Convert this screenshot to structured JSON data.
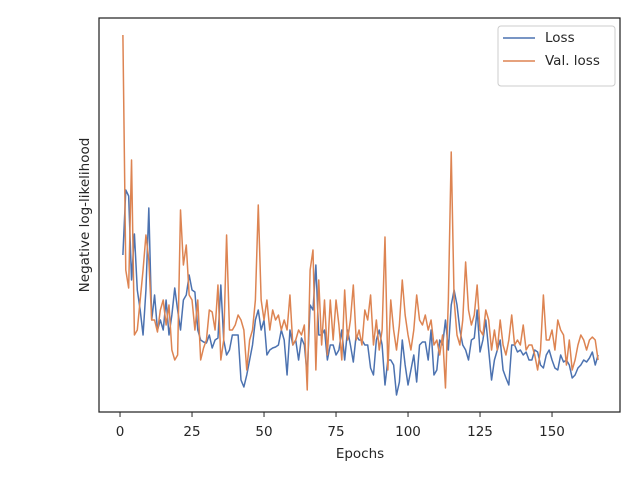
{
  "chart_data": {
    "type": "line",
    "xlabel": "Epochs",
    "ylabel": "Negative log-likelihood",
    "x": [
      1,
      2,
      3,
      4,
      5,
      6,
      7,
      8,
      9,
      10,
      11,
      12,
      13,
      14,
      15,
      16,
      17,
      18,
      19,
      20,
      21,
      22,
      23,
      24,
      25,
      26,
      27,
      28,
      29,
      30,
      31,
      32,
      33,
      34,
      35,
      36,
      37,
      38,
      39,
      40,
      41,
      42,
      43,
      44,
      45,
      46,
      47,
      48,
      49,
      50,
      51,
      52,
      53,
      54,
      55,
      56,
      57,
      58,
      59,
      60,
      61,
      62,
      63,
      64,
      65,
      66,
      67,
      68,
      69,
      70,
      71,
      72,
      73,
      74,
      75,
      76,
      77,
      78,
      79,
      80,
      81,
      82,
      83,
      84,
      85,
      86,
      87,
      88,
      89,
      90,
      91,
      92,
      93,
      94,
      95,
      96,
      97,
      98,
      99,
      100,
      101,
      102,
      103,
      104,
      105,
      106,
      107,
      108,
      109,
      110,
      111,
      112,
      113,
      114,
      115,
      116,
      117,
      118,
      119,
      120,
      121,
      122,
      123,
      124,
      125,
      126,
      127,
      128,
      129,
      130,
      131,
      132,
      133,
      134,
      135,
      136,
      137,
      138,
      139,
      140,
      141,
      142,
      143,
      144,
      145,
      146,
      147,
      148,
      149,
      150,
      151,
      152,
      153,
      154,
      155,
      156,
      157,
      158,
      159,
      160,
      161,
      162,
      163,
      164,
      165,
      166
    ],
    "series": [
      {
        "name": "Loss",
        "color": "#4c72b0",
        "values": [
          157,
          222,
          216,
          132,
          178,
          122,
          102,
          77,
          122,
          204,
          92,
          117,
          82,
          92,
          82,
          112,
          77,
          97,
          124,
          102,
          82,
          112,
          117,
          137,
          122,
          120,
          82,
          72,
          70,
          69,
          77,
          64,
          72,
          74,
          127,
          72,
          57,
          62,
          77,
          77,
          77,
          32,
          25,
          37,
          52,
          67,
          92,
          102,
          82,
          92,
          57,
          62,
          64,
          65,
          67,
          82,
          72,
          37,
          82,
          67,
          72,
          52,
          74,
          67,
          37,
          107,
          102,
          147,
          77,
          77,
          82,
          52,
          67,
          67,
          57,
          62,
          82,
          52,
          82,
          67,
          50,
          77,
          72,
          72,
          67,
          67,
          44,
          37,
          72,
          82,
          67,
          27,
          52,
          52,
          47,
          17,
          30,
          72,
          47,
          27,
          42,
          57,
          30,
          67,
          70,
          70,
          52,
          82,
          37,
          42,
          72,
          67,
          92,
          62,
          107,
          122,
          107,
          82,
          67,
          62,
          52,
          72,
          74,
          102,
          60,
          72,
          92,
          62,
          32,
          52,
          62,
          72,
          42,
          34,
          27,
          67,
          67,
          60,
          62,
          57,
          60,
          52,
          52,
          62,
          60,
          47,
          44,
          57,
          62,
          52,
          44,
          42,
          57,
          50,
          52,
          47,
          34,
          37,
          44,
          47,
          52,
          50,
          54,
          60,
          47,
          57
        ]
      },
      {
        "name": "Val. loss",
        "color": "#dd8452",
        "values": [
          377,
          142,
          124,
          252,
          77,
          82,
          112,
          142,
          177,
          152,
          92,
          92,
          80,
          102,
          112,
          87,
          107,
          62,
          52,
          57,
          202,
          147,
          167,
          117,
          112,
          82,
          112,
          52,
          64,
          72,
          102,
          100,
          82,
          127,
          52,
          72,
          177,
          82,
          82,
          87,
          97,
          92,
          82,
          42,
          72,
          82,
          112,
          207,
          112,
          92,
          112,
          82,
          102,
          92,
          97,
          82,
          92,
          82,
          117,
          67,
          72,
          82,
          77,
          87,
          22,
          142,
          162,
          42,
          132,
          67,
          112,
          57,
          112,
          72,
          112,
          87,
          52,
          122,
          72,
          92,
          127,
          72,
          82,
          67,
          102,
          92,
          117,
          67,
          92,
          62,
          82,
          175,
          42,
          112,
          82,
          62,
          87,
          132,
          97,
          77,
          62,
          82,
          117,
          92,
          87,
          97,
          82,
          92,
          67,
          72,
          57,
          77,
          24,
          112,
          260,
          112,
          77,
          67,
          92,
          150,
          102,
          87,
          97,
          127,
          82,
          77,
          102,
          92,
          62,
          82,
          62,
          92,
          67,
          57,
          72,
          97,
          67,
          72,
          67,
          87,
          62,
          67,
          67,
          57,
          42,
          62,
          117,
          72,
          72,
          82,
          62,
          92,
          82,
          77,
          47,
          72,
          42,
          52,
          67,
          77,
          72,
          62,
          72,
          75,
          72,
          52
        ]
      }
    ],
    "xlim": [
      -7.3,
      173.6
    ],
    "xticks": [
      0,
      25,
      50,
      75,
      100,
      125,
      150
    ],
    "ylim": [
      0,
      394
    ],
    "legend": "upper right"
  }
}
